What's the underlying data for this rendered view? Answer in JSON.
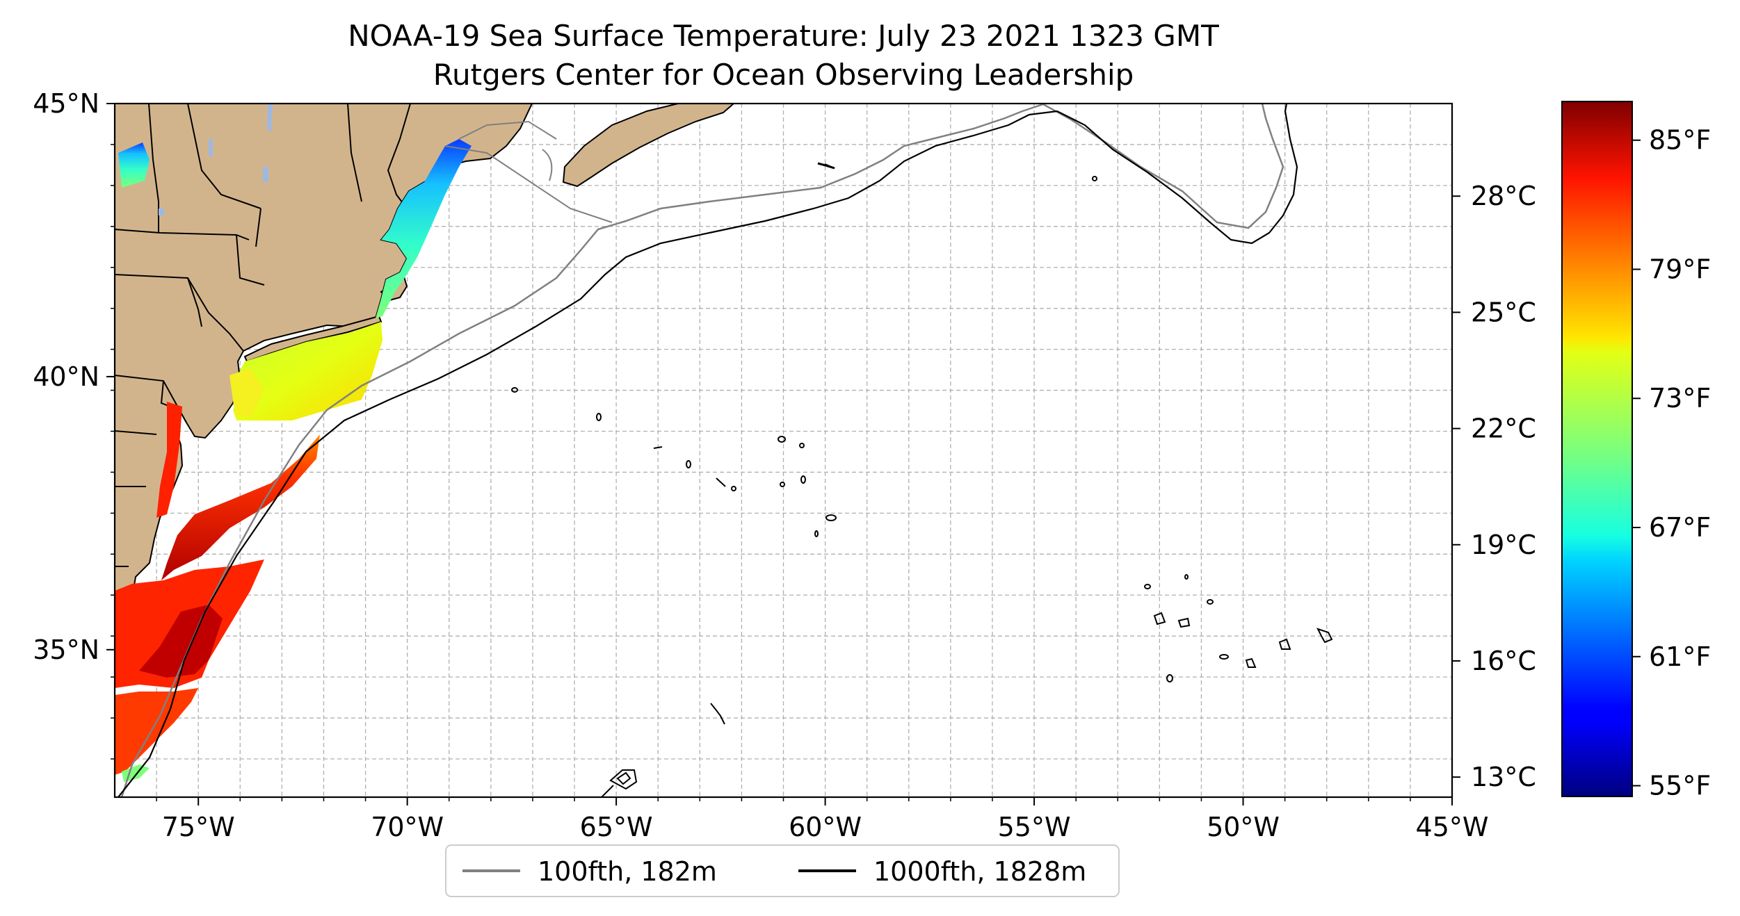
{
  "title": {
    "line1": "NOAA-19 Sea Surface Temperature: July 23 2021 1323 GMT",
    "line2": "Rutgers Center for Ocean Observing Leadership"
  },
  "map": {
    "lon_range": [
      -77,
      -45
    ],
    "lat_range": [
      32.3,
      45
    ],
    "lon_ticks": [
      {
        "value": -75,
        "label": "75°W"
      },
      {
        "value": -70,
        "label": "70°W"
      },
      {
        "value": -65,
        "label": "65°W"
      },
      {
        "value": -60,
        "label": "60°W"
      },
      {
        "value": -55,
        "label": "55°W"
      },
      {
        "value": -50,
        "label": "50°W"
      },
      {
        "value": -45,
        "label": "45°W"
      }
    ],
    "lat_ticks": [
      {
        "value": 35,
        "label": "35°N"
      },
      {
        "value": 40,
        "label": "40°N"
      },
      {
        "value": 45,
        "label": "45°N"
      }
    ],
    "minor_grid": true,
    "land_color": "#d2b48c",
    "ocean_color": "#ffffff",
    "lake_color": "#9fb8e0",
    "isobath_100_color": "#808080",
    "isobath_1000_color": "#000000"
  },
  "legend": {
    "placement": "bottom-center",
    "items": [
      {
        "label": "100fth, 182m",
        "color": "#808080"
      },
      {
        "label": "1000fth, 1828m",
        "color": "#000000"
      }
    ]
  },
  "colorbar": {
    "colormap": "jet",
    "celsius_ticks": [
      {
        "value": 13,
        "label": "13°C"
      },
      {
        "value": 16,
        "label": "16°C"
      },
      {
        "value": 19,
        "label": "19°C"
      },
      {
        "value": 22,
        "label": "22°C"
      },
      {
        "value": 25,
        "label": "25°C"
      },
      {
        "value": 28,
        "label": "28°C"
      }
    ],
    "fahrenheit_ticks": [
      {
        "value": 55,
        "label": "55°F"
      },
      {
        "value": 61,
        "label": "61°F"
      },
      {
        "value": 67,
        "label": "67°F"
      },
      {
        "value": 73,
        "label": "73°F"
      },
      {
        "value": 79,
        "label": "79°F"
      },
      {
        "value": 85,
        "label": "85°F"
      }
    ],
    "range_f": [
      54.5,
      86.8
    ]
  }
}
